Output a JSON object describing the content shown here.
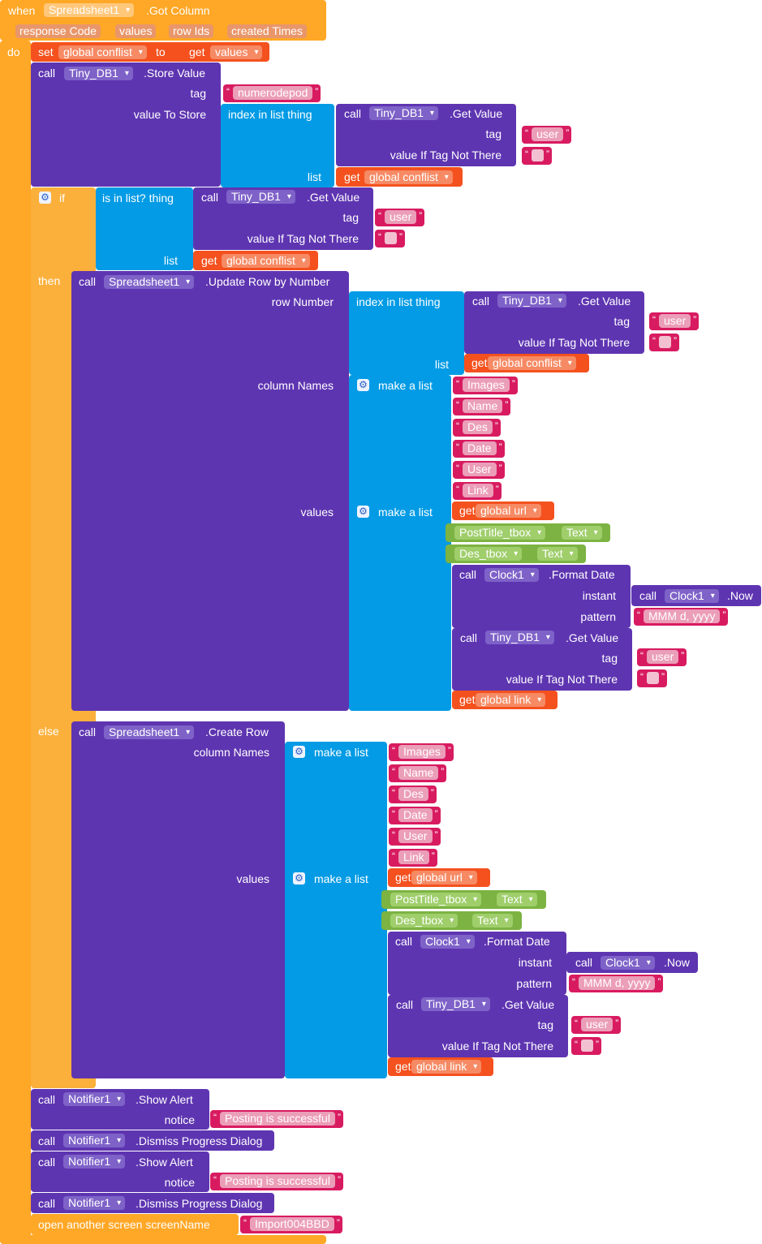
{
  "event": {
    "when": "when",
    "component": "Spreadsheet1",
    "event_name": ".Got Column",
    "params": [
      "response Code",
      "values",
      "row Ids",
      "created Times"
    ],
    "do": "do"
  },
  "set_block": {
    "set": "set",
    "var": "global conflist",
    "to": "to",
    "get": "get",
    "val": "values"
  },
  "store_value": {
    "call": "call",
    "component": "Tiny_DB1",
    "method": ".Store Value",
    "tag_label": "tag",
    "tag_value": "numerodepod",
    "value_label": "value To Store",
    "index_label": "index in list  thing",
    "list_label": "list",
    "get": "get",
    "get_var": "global conflist",
    "inner_call": {
      "call": "call",
      "component": "Tiny_DB1",
      "method": ".Get Value",
      "tag_label": "tag",
      "tag_value": "user",
      "not_there_label": "value If Tag Not There"
    }
  },
  "if_block": {
    "if_label": "if",
    "is_in_list": "is in list? thing",
    "list_label": "list",
    "get": "get",
    "get_var": "global conflist",
    "inner_call": {
      "call": "call",
      "component": "Tiny_DB1",
      "method": ".Get Value",
      "tag_label": "tag",
      "tag_value": "user",
      "not_there_label": "value If Tag Not There"
    },
    "then_label": "then",
    "else_label": "else"
  },
  "update_row": {
    "call": "call",
    "component": "Spreadsheet1",
    "method": ".Update Row by Number",
    "row_number_label": "row Number",
    "index_label": "index in list  thing",
    "list_label": "list",
    "get": "get",
    "get_var": "global conflist",
    "inner_call": {
      "call": "call",
      "component": "Tiny_DB1",
      "method": ".Get Value",
      "tag_label": "tag",
      "tag_value": "user",
      "not_there_label": "value If Tag Not There"
    },
    "column_names_label": "column Names",
    "values_label": "values",
    "make_list": "make a list",
    "columns": [
      "Images",
      "Name",
      "Des",
      "Date",
      "User",
      "Link"
    ],
    "values": {
      "get": "get",
      "url_var": "global url",
      "post_title_component": "PostTitle_tbox",
      "des_component": "Des_tbox",
      "text_prop": "Text",
      "format_date": {
        "call": "call",
        "component": "Clock1",
        "method": ".Format Date",
        "instant_label": "instant",
        "now_method": ".Now",
        "pattern_label": "pattern",
        "pattern_value": "MMM d, yyyy"
      },
      "get_value": {
        "call": "call",
        "component": "Tiny_DB1",
        "method": ".Get Value",
        "tag_label": "tag",
        "tag_value": "user",
        "not_there_label": "value If Tag Not There"
      },
      "link_var": "global link"
    }
  },
  "create_row": {
    "call": "call",
    "component": "Spreadsheet1",
    "method": ".Create Row",
    "column_names_label": "column Names",
    "values_label": "values",
    "make_list": "make a list",
    "columns": [
      "Images",
      "Name",
      "Des",
      "Date",
      "User",
      "Link"
    ],
    "values": {
      "get": "get",
      "url_var": "global url",
      "post_title_component": "PostTitle_tbox",
      "des_component": "Des_tbox",
      "text_prop": "Text",
      "format_date": {
        "call": "call",
        "component": "Clock1",
        "method": ".Format Date",
        "instant_label": "instant",
        "now_method": ".Now",
        "pattern_label": "pattern",
        "pattern_value": "MMM d, yyyy"
      },
      "get_value": {
        "call": "call",
        "component": "Tiny_DB1",
        "method": ".Get Value",
        "tag_label": "tag",
        "tag_value": "user",
        "not_there_label": "value If Tag Not There"
      },
      "link_var": "global link"
    }
  },
  "tail": {
    "call": "call",
    "notifier": "Notifier1",
    "show_alert": ".Show Alert",
    "notice_label": "notice",
    "notice_value": "Posting is successful",
    "dismiss": ".Dismiss Progress Dialog",
    "open_screen": "open another screen  screenName",
    "screen_value": "Import004BBD"
  },
  "colors": {
    "event": "#ffa726",
    "procedure": "#5e35b1",
    "list": "#039be5",
    "variable": "#f4511e",
    "text": "#d81b60",
    "logic": "#fbb03b",
    "component": "#7cb342"
  }
}
